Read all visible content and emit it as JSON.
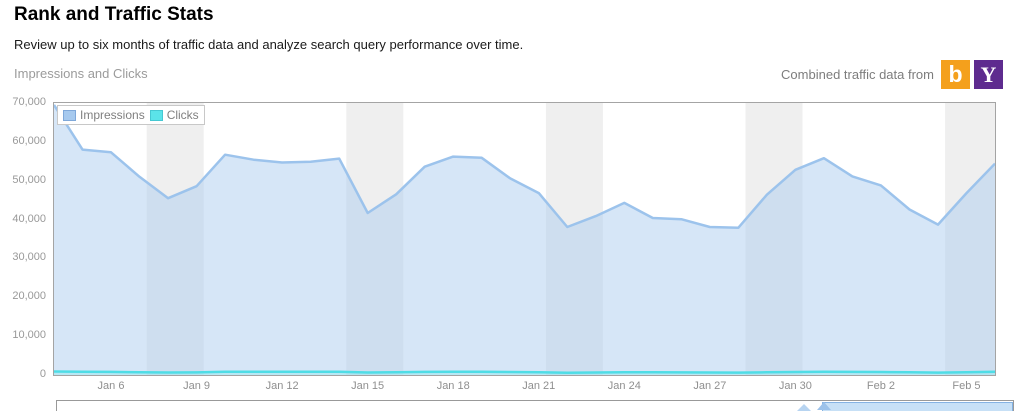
{
  "page": {
    "title": "Rank and Traffic Stats",
    "subtitle": "Review up to six months of traffic data and analyze search query performance over time.",
    "section_label": "Impressions and Clicks",
    "combined_label": "Combined traffic data from",
    "providers": [
      {
        "name": "Bing",
        "letter": "b",
        "color": "#F4A01C"
      },
      {
        "name": "Yahoo",
        "letter": "Y",
        "color": "#5E2B8F"
      }
    ]
  },
  "chart_data": {
    "type": "area",
    "title": "Impressions and Clicks",
    "x": [
      "Jan 4",
      "Jan 5",
      "Jan 6",
      "Jan 7",
      "Jan 8",
      "Jan 9",
      "Jan 10",
      "Jan 11",
      "Jan 12",
      "Jan 13",
      "Jan 14",
      "Jan 15",
      "Jan 16",
      "Jan 17",
      "Jan 18",
      "Jan 19",
      "Jan 20",
      "Jan 21",
      "Jan 22",
      "Jan 23",
      "Jan 24",
      "Jan 25",
      "Jan 26",
      "Jan 27",
      "Jan 28",
      "Jan 29",
      "Jan 30",
      "Jan 31",
      "Feb 1",
      "Feb 2",
      "Feb 3",
      "Feb 4",
      "Feb 5",
      "Feb 6"
    ],
    "series": [
      {
        "name": "Impressions",
        "color": "#9cc3ec",
        "fill": "rgba(173,205,240,0.5)",
        "swatch": "#a6c9ee",
        "swatch_border": "#7fa8d9",
        "values": [
          69500,
          58000,
          57300,
          51000,
          45500,
          48600,
          56700,
          55400,
          54700,
          54900,
          55700,
          41700,
          46500,
          53600,
          56200,
          55900,
          50600,
          46800,
          38100,
          40900,
          44300,
          40400,
          40100,
          38100,
          37900,
          46400,
          52800,
          55800,
          51100,
          48800,
          42600,
          38700,
          46800,
          54400
        ]
      },
      {
        "name": "Clicks",
        "color": "#4fdde6",
        "fill": "rgba(140,235,240,0.4)",
        "swatch": "#5be3e9",
        "swatch_border": "#45c8d2",
        "values": [
          900,
          820,
          800,
          720,
          650,
          680,
          820,
          830,
          820,
          820,
          840,
          640,
          700,
          800,
          840,
          830,
          780,
          700,
          600,
          650,
          720,
          700,
          660,
          650,
          620,
          700,
          780,
          820,
          800,
          760,
          700,
          620,
          700,
          820
        ]
      }
    ],
    "ylim": [
      0,
      70000
    ],
    "yticks": [
      0,
      10000,
      20000,
      30000,
      40000,
      50000,
      60000,
      70000
    ],
    "ytick_labels": [
      "0",
      "10,000",
      "20,000",
      "30,000",
      "40,000",
      "50,000",
      "60,000",
      "70,000"
    ],
    "xtick_labels": [
      "Jan 6",
      "Jan 9",
      "Jan 12",
      "Jan 15",
      "Jan 18",
      "Jan 21",
      "Jan 24",
      "Jan 27",
      "Jan 30",
      "Feb 2",
      "Feb 5"
    ],
    "weekend_bands": [
      [
        "Jan 8",
        "Jan 9"
      ],
      [
        "Jan 15",
        "Jan 16"
      ],
      [
        "Jan 22",
        "Jan 23"
      ],
      [
        "Jan 29",
        "Jan 30"
      ],
      [
        "Feb 5",
        "Feb 6"
      ]
    ],
    "band_color": "#efefef",
    "grid": false,
    "legend_position": "top-left"
  }
}
